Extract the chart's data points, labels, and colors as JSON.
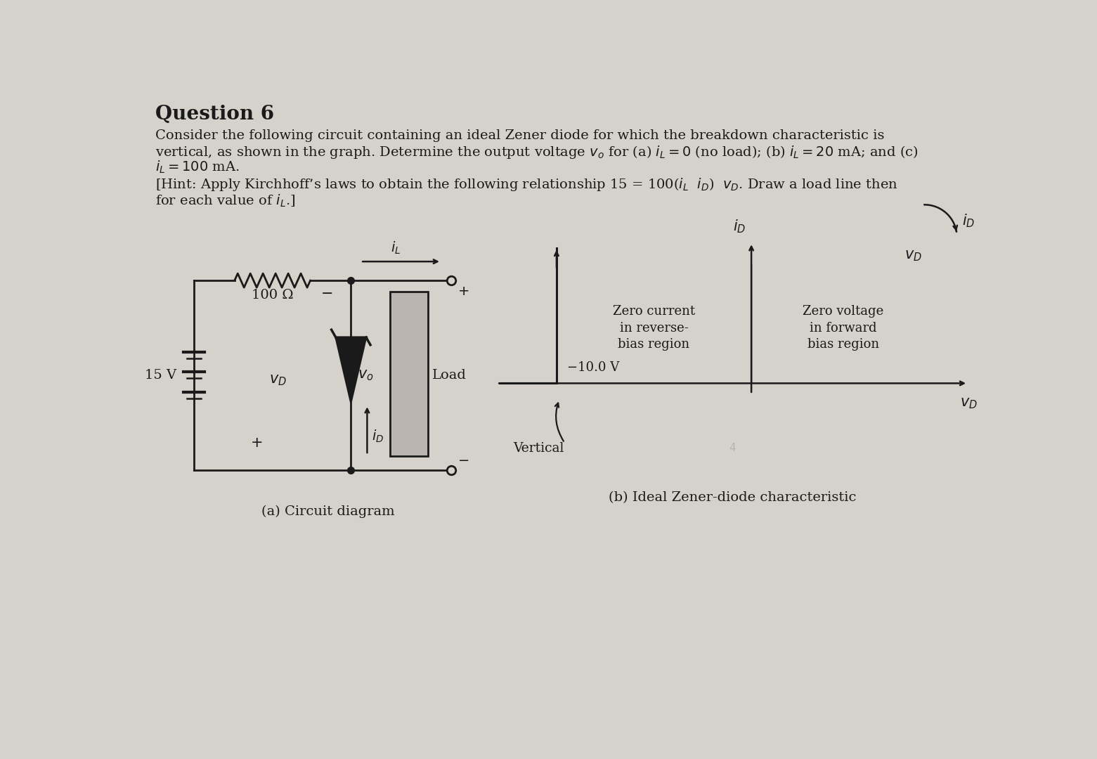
{
  "bg_color": "#d5d1cb",
  "title": "Question 6",
  "text1": "Consider the following circuit containing an ideal Zener diode for which the breakdown characteristic is",
  "text2": "vertical, as shown in the graph. Determine the output voltage $v_o$ for (a) $i_L = 0$ (no load); (b) $i_L = 20$ mA; and (c)",
  "text3": "$i_L = 100$ mA.",
  "text4": "[Hint: Apply Kirchhoff’s laws to obtain the following relationship 15 = 100($i_L$  $i_D$)  $v_D$. Draw a load line then",
  "text5": "for each value of $i_L$.]",
  "caption_a": "(a) Circuit diagram",
  "caption_b": "(b) Ideal Zener-diode characteristic",
  "label_iL": "$i_L$",
  "label_vD_circuit": "$v_D$",
  "label_iD_circuit": "$i_D$",
  "label_vo": "$v_o$",
  "label_15V": "15 V",
  "label_100ohm": "100 Ω",
  "label_load": "Load",
  "neg10_label": "−10.0 V",
  "vertical_label": "Vertical",
  "zero_current_label": "Zero current\nin reverse-\nbias region",
  "zero_voltage_label": "Zero voltage\nin forward\nbias region",
  "line_color": "#1a1a1a",
  "text_color": "#1a1a1a"
}
